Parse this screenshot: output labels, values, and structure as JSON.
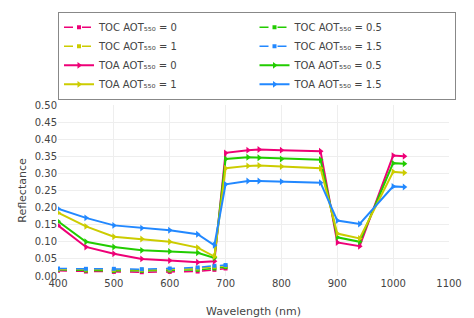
{
  "chart_data": {
    "type": "line",
    "xlabel": "Wavelength (nm)",
    "ylabel": "Reflectance",
    "xlim": [
      400,
      1100
    ],
    "ylim": [
      0,
      0.5
    ],
    "xticks": [
      400,
      500,
      600,
      700,
      800,
      900,
      1000,
      1100
    ],
    "yticks": [
      {
        "value": 0,
        "label": "0.00"
      },
      0.05,
      {
        "value": 0.1,
        "label": "0.10"
      },
      0.15,
      {
        "value": 0.2,
        "label": "0.20"
      },
      0.25,
      {
        "value": 0.3,
        "label": "0.30"
      },
      0.35,
      {
        "value": 0.4,
        "label": "0.40"
      },
      0.45,
      {
        "value": 0.5,
        "label": "0.50"
      }
    ],
    "grid": true,
    "legend": "top",
    "series": [
      {
        "name": "TOC AOT₅₅₀ = 0",
        "color": "#ee0077",
        "line_style": "dashed",
        "marker": "square",
        "x": [
          400,
          450,
          500,
          550,
          600,
          650,
          680,
          700
        ],
        "values": [
          0.015,
          0.013,
          0.012,
          0.011,
          0.012,
          0.013,
          0.018,
          0.022
        ]
      },
      {
        "name": "TOC AOT₅₅₀ = 0.5",
        "color": "#22cc00",
        "line_style": "dashed",
        "marker": "square",
        "x": [
          400,
          450,
          500,
          550,
          600,
          650,
          680,
          700
        ],
        "values": [
          0.018,
          0.016,
          0.015,
          0.015,
          0.016,
          0.018,
          0.022,
          0.026
        ]
      },
      {
        "name": "TOC AOT₅₅₀ = 1",
        "color": "#cccc00",
        "line_style": "dashed",
        "marker": "square",
        "x": [
          400,
          450,
          500,
          550,
          600,
          650,
          680,
          700
        ],
        "values": [
          0.02,
          0.019,
          0.018,
          0.018,
          0.019,
          0.022,
          0.027,
          0.03
        ]
      },
      {
        "name": "TOC AOT₅₅₀ = 1.5",
        "color": "#2288ff",
        "line_style": "dashed",
        "marker": "square",
        "x": [
          400,
          450,
          500,
          550,
          600,
          650,
          680,
          700
        ],
        "values": [
          0.022,
          0.021,
          0.021,
          0.02,
          0.022,
          0.025,
          0.03,
          0.032
        ]
      },
      {
        "name": "TOA AOT₅₅₀ = 0",
        "color": "#ee0077",
        "line_style": "solid",
        "marker": "triangle-right",
        "x": [
          400,
          450,
          500,
          550,
          600,
          650,
          680,
          700,
          740,
          760,
          800,
          870,
          900,
          940,
          1000,
          1020
        ],
        "values": [
          0.148,
          0.085,
          0.065,
          0.05,
          0.045,
          0.04,
          0.043,
          0.36,
          0.368,
          0.37,
          0.368,
          0.365,
          0.098,
          0.087,
          0.352,
          0.35
        ]
      },
      {
        "name": "TOA AOT₅₅₀ = 0.5",
        "color": "#22cc00",
        "line_style": "solid",
        "marker": "triangle-right",
        "x": [
          400,
          450,
          500,
          550,
          600,
          650,
          680,
          700,
          740,
          760,
          800,
          870,
          900,
          940,
          1000,
          1020
        ],
        "values": [
          0.16,
          0.1,
          0.085,
          0.075,
          0.072,
          0.068,
          0.053,
          0.342,
          0.347,
          0.346,
          0.342,
          0.34,
          0.113,
          0.1,
          0.33,
          0.328
        ]
      },
      {
        "name": "TOA AOT₅₅₀ = 1",
        "color": "#cccc00",
        "line_style": "solid",
        "marker": "triangle-right",
        "x": [
          400,
          450,
          500,
          550,
          600,
          650,
          680,
          700,
          740,
          760,
          800,
          870,
          900,
          940,
          1000,
          1020
        ],
        "values": [
          0.185,
          0.145,
          0.115,
          0.108,
          0.1,
          0.083,
          0.057,
          0.315,
          0.322,
          0.323,
          0.32,
          0.315,
          0.124,
          0.11,
          0.305,
          0.302
        ]
      },
      {
        "name": "TOA AOT₅₅₀ = 1.5",
        "color": "#2288ff",
        "line_style": "solid",
        "marker": "triangle-right",
        "x": [
          400,
          450,
          500,
          550,
          600,
          650,
          680,
          700,
          740,
          760,
          800,
          870,
          900,
          940,
          1000,
          1020
        ],
        "values": [
          0.197,
          0.17,
          0.148,
          0.14,
          0.134,
          0.122,
          0.09,
          0.268,
          0.278,
          0.278,
          0.276,
          0.273,
          0.162,
          0.152,
          0.262,
          0.26
        ]
      }
    ]
  }
}
